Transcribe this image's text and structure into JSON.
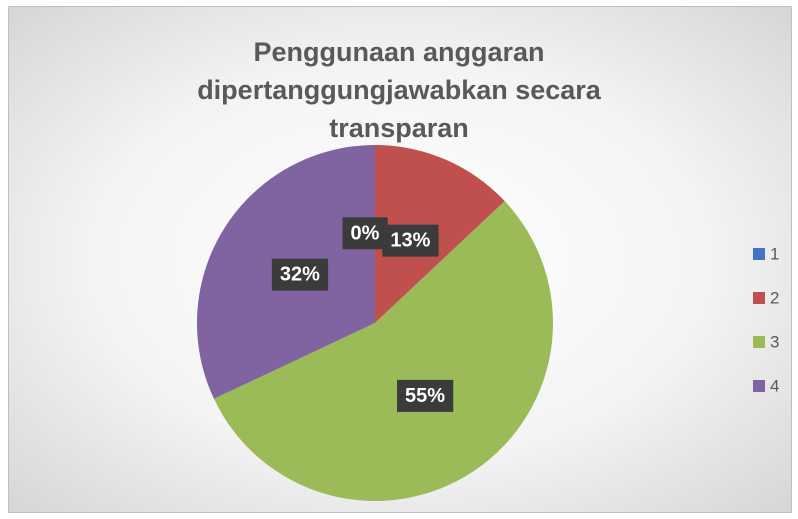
{
  "chart_data": {
    "type": "pie",
    "title": "Penggunaan anggaran dipertanggungjawabkan secara transparan",
    "categories": [
      "1",
      "2",
      "3",
      "4"
    ],
    "values": [
      0,
      13,
      55,
      32
    ],
    "value_labels": [
      "0%",
      "13%",
      "55%",
      "32%"
    ],
    "colors": [
      "#4472c4",
      "#c0504d",
      "#9bbb59",
      "#8064a2"
    ],
    "legend": "right"
  }
}
